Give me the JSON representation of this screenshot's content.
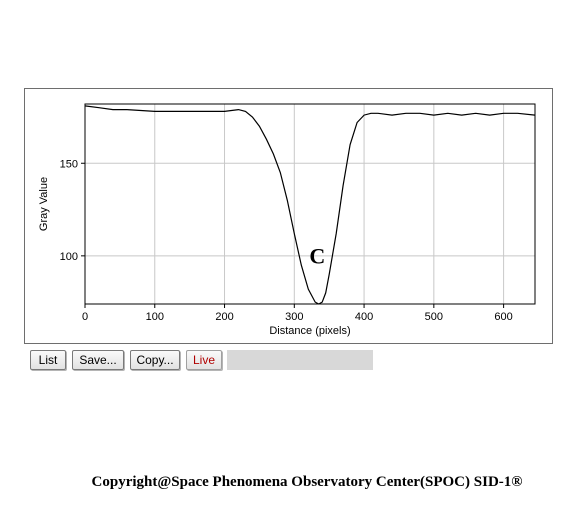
{
  "chart_data": {
    "type": "line",
    "xlabel": "Distance (pixels)",
    "ylabel": "Gray Value",
    "xlim": [
      0,
      645
    ],
    "ylim": [
      74,
      182
    ],
    "xticks": [
      0,
      100,
      200,
      300,
      400,
      500,
      600
    ],
    "yticks": [
      100,
      150
    ],
    "grid": true,
    "annotation": "C",
    "annotation_at": {
      "x": 333,
      "y": 96
    },
    "series": [
      {
        "x": [
          0,
          20,
          40,
          60,
          100,
          150,
          200,
          220,
          230,
          240,
          250,
          260,
          270,
          280,
          290,
          300,
          310,
          320,
          330,
          335,
          340,
          345,
          350,
          360,
          370,
          380,
          390,
          400,
          410,
          420,
          440,
          460,
          480,
          500,
          520,
          540,
          560,
          580,
          600,
          620,
          645
        ],
        "y": [
          181,
          180,
          179,
          179,
          178,
          178,
          178,
          179,
          178,
          175,
          170,
          163,
          155,
          145,
          130,
          112,
          95,
          82,
          75,
          74,
          75,
          80,
          90,
          112,
          138,
          160,
          172,
          176,
          177,
          177,
          176,
          177,
          177,
          176,
          177,
          176,
          177,
          176,
          177,
          177,
          176
        ]
      }
    ]
  },
  "toolbar": {
    "list_label": "List",
    "save_label": "Save...",
    "copy_label": "Copy...",
    "live_label": "Live"
  },
  "footer": {
    "copyright": "Copyright@Space Phenomena Observatory Center(SPOC) SID-1®"
  },
  "colors": {
    "line": "#000000",
    "grid": "#c8c8c8",
    "live_text": "#b00000"
  }
}
